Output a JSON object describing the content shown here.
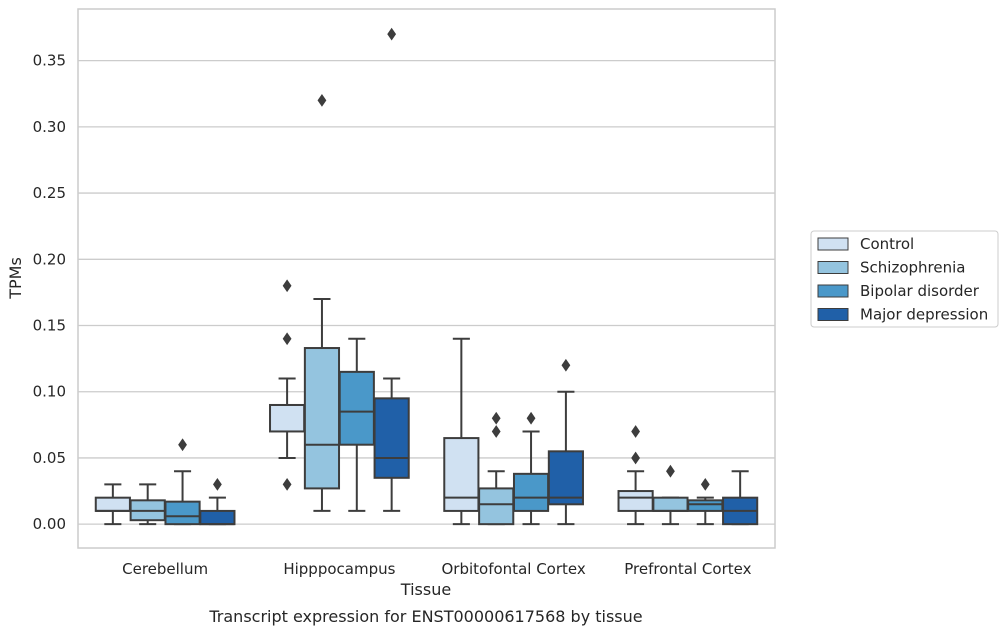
{
  "chart_data": {
    "type": "box",
    "xlabel": "Tissue",
    "ylabel": "TPMs",
    "caption": "Transcript expression for ENST00000617568 by tissue",
    "ylim": [
      -0.018,
      0.389
    ],
    "yticks": [
      0.0,
      0.05,
      0.1,
      0.15,
      0.2,
      0.25,
      0.3,
      0.35
    ],
    "ytick_labels": [
      "0.00",
      "0.05",
      "0.10",
      "0.15",
      "0.20",
      "0.25",
      "0.30",
      "0.35"
    ],
    "grid": true,
    "legend_position": "right",
    "categories": [
      "Cerebellum",
      "Hipppocampus",
      "Orbitofontal Cortex",
      "Prefrontal Cortex"
    ],
    "series": [
      {
        "name": "Control",
        "color": "#d0e1f2",
        "boxes": [
          {
            "whisker_low": 0.0,
            "q1": 0.01,
            "median": 0.01,
            "q3": 0.02,
            "whisker_high": 0.03,
            "outliers": []
          },
          {
            "whisker_low": 0.05,
            "q1": 0.07,
            "median": 0.09,
            "q3": 0.09,
            "whisker_high": 0.11,
            "outliers": [
              0.18,
              0.14,
              0.03
            ]
          },
          {
            "whisker_low": 0.0,
            "q1": 0.01,
            "median": 0.02,
            "q3": 0.065,
            "whisker_high": 0.14,
            "outliers": []
          },
          {
            "whisker_low": 0.0,
            "q1": 0.01,
            "median": 0.02,
            "q3": 0.025,
            "whisker_high": 0.04,
            "outliers": [
              0.07,
              0.05
            ]
          }
        ]
      },
      {
        "name": "Schizophrenia",
        "color": "#94c4df",
        "boxes": [
          {
            "whisker_low": 0.0,
            "q1": 0.003,
            "median": 0.01,
            "q3": 0.018,
            "whisker_high": 0.03,
            "outliers": []
          },
          {
            "whisker_low": 0.01,
            "q1": 0.027,
            "median": 0.06,
            "q3": 0.133,
            "whisker_high": 0.17,
            "outliers": [
              0.32
            ]
          },
          {
            "whisker_low": 0.0,
            "q1": 0.0,
            "median": 0.015,
            "q3": 0.027,
            "whisker_high": 0.04,
            "outliers": [
              0.08,
              0.07
            ]
          },
          {
            "whisker_low": 0.0,
            "q1": 0.01,
            "median": 0.01,
            "q3": 0.02,
            "whisker_high": 0.02,
            "outliers": [
              0.04
            ]
          }
        ]
      },
      {
        "name": "Bipolar disorder",
        "color": "#4a98c9",
        "boxes": [
          {
            "whisker_low": 0.0,
            "q1": 0.0,
            "median": 0.006,
            "q3": 0.017,
            "whisker_high": 0.04,
            "outliers": [
              0.06
            ]
          },
          {
            "whisker_low": 0.01,
            "q1": 0.06,
            "median": 0.085,
            "q3": 0.115,
            "whisker_high": 0.14,
            "outliers": []
          },
          {
            "whisker_low": 0.0,
            "q1": 0.01,
            "median": 0.02,
            "q3": 0.038,
            "whisker_high": 0.07,
            "outliers": [
              0.08
            ]
          },
          {
            "whisker_low": 0.0,
            "q1": 0.01,
            "median": 0.015,
            "q3": 0.018,
            "whisker_high": 0.02,
            "outliers": [
              0.03
            ]
          }
        ]
      },
      {
        "name": "Major depression",
        "color": "#2060a8",
        "boxes": [
          {
            "whisker_low": 0.0,
            "q1": 0.0,
            "median": 0.0,
            "q3": 0.01,
            "whisker_high": 0.02,
            "outliers": [
              0.03
            ]
          },
          {
            "whisker_low": 0.01,
            "q1": 0.035,
            "median": 0.05,
            "q3": 0.095,
            "whisker_high": 0.11,
            "outliers": [
              0.37
            ]
          },
          {
            "whisker_low": 0.0,
            "q1": 0.015,
            "median": 0.02,
            "q3": 0.055,
            "whisker_high": 0.1,
            "outliers": [
              0.12
            ]
          },
          {
            "whisker_low": 0.0,
            "q1": 0.0,
            "median": 0.01,
            "q3": 0.02,
            "whisker_high": 0.04,
            "outliers": []
          }
        ]
      }
    ],
    "colors": {
      "axis_frame": "#cccccc",
      "grid": "#cccccc",
      "box_edge": "#3d3d3d"
    }
  }
}
